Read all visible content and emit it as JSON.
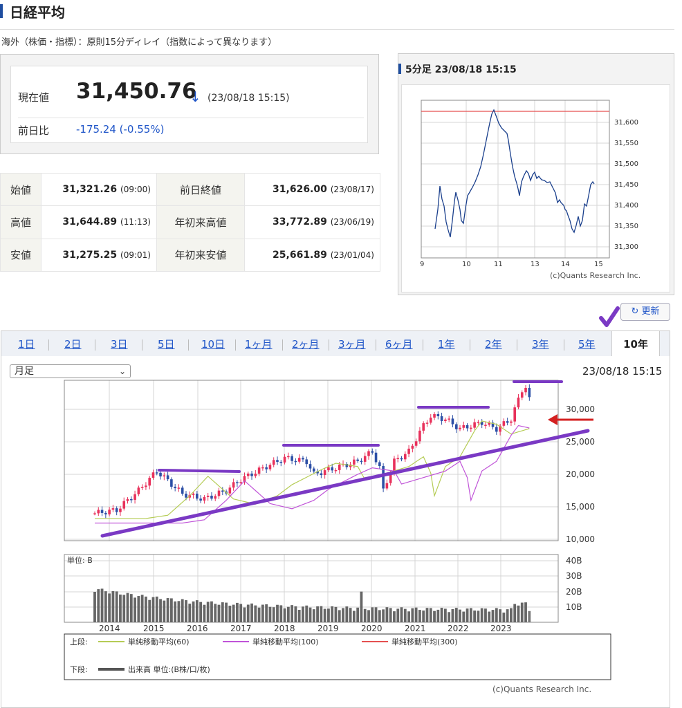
{
  "title": "日経平均",
  "note": "海外（株価・指標）：原則15分ディレイ（指数によって異なります）",
  "price": {
    "label": "現在値",
    "value": "31,450.76",
    "arrow": "↓",
    "time": "(23/08/18 15:15)",
    "prev_label": "前日比",
    "change": "-175.24 (-0.55%)"
  },
  "stats": [
    {
      "label1": "始値",
      "value1": "31,321.26",
      "time1": "(09:00)",
      "label2": "前日終値",
      "value2": "31,626.00",
      "time2": "(23/08/17)"
    },
    {
      "label1": "高値",
      "value1": "31,644.89",
      "time1": "(11:13)",
      "label2": "年初来高値",
      "value2": "33,772.89",
      "time2": "(23/06/19)"
    },
    {
      "label1": "安値",
      "value1": "31,275.25",
      "time1": "(09:01)",
      "label2": "年初来安値",
      "value2": "25,661.89",
      "time2": "(23/01/04)"
    }
  ],
  "intraday": {
    "header": "5分足 23/08/18 15:15",
    "x_ticks": [
      "9",
      "10",
      "11",
      "13",
      "14",
      "15"
    ],
    "y_ticks": [
      "31,600",
      "31,550",
      "31,500",
      "31,450",
      "31,400",
      "31,350",
      "31,300"
    ],
    "copyright": "(c)Quants Research Inc.",
    "line_color": "#1a3f8c",
    "ref_color": "#e55050"
  },
  "refresh_label": "更新",
  "tabs": [
    "1日",
    "2日",
    "3日",
    "5日",
    "10日",
    "1ヶ月",
    "2ヶ月",
    "3ヶ月",
    "6ヶ月",
    "1年",
    "2年",
    "3年",
    "5年",
    "10年"
  ],
  "active_tab": "10年",
  "period_select": "月足",
  "chart_stamp": "23/08/18 15:15",
  "chart_data": {
    "type": "candlestick",
    "x_ticks": [
      "2014",
      "2015",
      "2016",
      "2017",
      "2018",
      "2019",
      "2020",
      "2021",
      "2022",
      "2023"
    ],
    "y_ticks": [
      "30,000",
      "25,000",
      "20,000",
      "15,000",
      "10,000"
    ],
    "ylim": [
      10000,
      34000
    ],
    "volume_ticks": [
      "40B",
      "30B",
      "20B",
      "10B"
    ],
    "volume_unit_label": "単位: B",
    "ma_colors": {
      "ma60": "#b5cc55",
      "ma100": "#c054d8",
      "ma300": "#e55050"
    },
    "up_color": "#e8315b",
    "down_color": "#2c4fa6"
  },
  "legend": {
    "upper_label": "上段:",
    "ma60": "単純移動平均(60)",
    "ma100": "単純移動平均(100)",
    "ma300": "単純移動平均(300)",
    "lower_label": "下段:",
    "volume": "出来高 単位:(B株/口/枚)"
  },
  "copyright": "(c)Quants Research Inc."
}
